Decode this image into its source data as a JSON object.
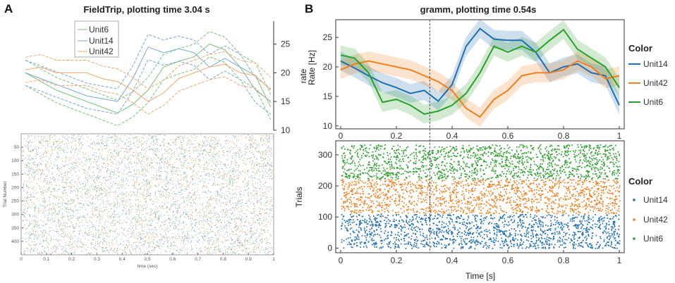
{
  "panels": {
    "A": {
      "letter": "A",
      "title": "FieldTrip, plotting time 3.04 s",
      "rate_axis": {
        "label": "rate",
        "ylim": [
          10,
          29
        ],
        "ticks": [
          "10",
          "15",
          "20",
          "25"
        ],
        "tick_values": [
          10,
          15,
          20,
          25
        ]
      },
      "raster_axis": {
        "ylabel": "Trial Number",
        "xlabel": "time (sec)",
        "xticks": [
          "0",
          "0.1",
          "0.2",
          "0.3",
          "0.4",
          "0.5",
          "0.6",
          "0.7",
          "0.8",
          "0.9",
          "1"
        ],
        "xtick_values": [
          0,
          0.1,
          0.2,
          0.3,
          0.4,
          0.5,
          0.6,
          0.7,
          0.8,
          0.9,
          1.0
        ],
        "yticks": [
          "50",
          "100",
          "150",
          "200",
          "250",
          "300",
          "350",
          "400"
        ],
        "ytick_values": [
          50,
          100,
          150,
          200,
          250,
          300,
          350,
          400
        ],
        "ylim": [
          0,
          450
        ]
      },
      "legend": [
        "Unit6",
        "Unit14",
        "Unit42"
      ]
    },
    "B": {
      "letter": "B",
      "title": "gramm, plotting time 0.54s",
      "rate_axis": {
        "label": "Rate [Hz]",
        "ylim": [
          9.5,
          28
        ],
        "ticks": [
          "10",
          "15",
          "20",
          "25"
        ],
        "tick_values": [
          10,
          15,
          20,
          25
        ],
        "xticks": [
          "0",
          "0.2",
          "0.4",
          "0.6",
          "0.8",
          "1"
        ],
        "xtick_values": [
          0,
          0.2,
          0.4,
          0.6,
          0.8,
          1.0
        ]
      },
      "raster_axis": {
        "ylabel": "Trials",
        "xlabel": "Time [s]",
        "xticks": [
          "0",
          "0.2",
          "0.4",
          "0.6",
          "0.8",
          "1"
        ],
        "xtick_values": [
          0,
          0.2,
          0.4,
          0.6,
          0.8,
          1.0
        ],
        "yticks": [
          "0",
          "100",
          "200",
          "300"
        ],
        "ytick_values": [
          0,
          100,
          200,
          300
        ],
        "ylim": [
          -15,
          345
        ]
      },
      "legend_rate": {
        "title": "Color",
        "items": [
          "Unit14",
          "Unit42",
          "Unit6"
        ]
      },
      "legend_raster": {
        "title": "Color",
        "items": [
          "Unit14",
          "Unit42",
          "Unit6"
        ]
      },
      "vline_x": 0.32
    }
  },
  "colors": {
    "Unit14": "#1f6fb2",
    "Unit42": "#f07f1e",
    "Unit6": "#2ca02c",
    "Unit14_a": "#79a9d6",
    "Unit42_a": "#f0a870",
    "Unit6_a": "#7cc27c"
  },
  "chart_data": [
    {
      "id": "A-rate",
      "type": "line",
      "title": "FieldTrip, plotting time 3.04 s",
      "ylabel": "rate",
      "ylim": [
        10,
        29
      ],
      "x": [
        0,
        0.0625,
        0.125,
        0.1875,
        0.25,
        0.3125,
        0.375,
        0.4375,
        0.5,
        0.5625,
        0.625,
        0.6875,
        0.75,
        0.8125,
        0.875,
        0.9375,
        1.0
      ],
      "series": [
        {
          "name": "Unit6",
          "color_key": "Unit6",
          "values": [
            20,
            18.5,
            17,
            16,
            15,
            14,
            13,
            14.5,
            17,
            21,
            22,
            22.8,
            25,
            24,
            21,
            19.5,
            14
          ]
        },
        {
          "name": "Unit14",
          "color_key": "Unit14",
          "values": [
            20,
            19,
            18,
            17,
            16,
            15.5,
            15,
            19,
            24.5,
            23.5,
            24.2,
            23.5,
            21,
            22.5,
            21,
            17,
            15
          ]
        },
        {
          "name": "Unit42",
          "color_key": "Unit42",
          "values": [
            20.5,
            21,
            20,
            20,
            20,
            19,
            18.5,
            17,
            15,
            16.5,
            19,
            20,
            21,
            21.5,
            20,
            19.5,
            17
          ]
        }
      ],
      "band": 2.2
    },
    {
      "id": "B-rate",
      "type": "line",
      "title": "gramm, plotting time 0.54s",
      "ylabel": "Rate [Hz]",
      "ylim": [
        9.5,
        28
      ],
      "x": [
        0,
        0.05,
        0.1,
        0.15,
        0.2,
        0.25,
        0.3,
        0.35,
        0.4,
        0.45,
        0.5,
        0.55,
        0.6,
        0.65,
        0.7,
        0.75,
        0.8,
        0.85,
        0.9,
        0.95,
        1.0
      ],
      "series": [
        {
          "name": "Unit14",
          "color_key": "Unit14",
          "values": [
            21,
            19.8,
            18.5,
            17.3,
            16.5,
            15.5,
            16,
            14.2,
            17,
            23.5,
            26.5,
            24.7,
            24.5,
            24.5,
            22.5,
            19,
            20,
            20.5,
            19,
            18.5,
            13.5
          ]
        },
        {
          "name": "Unit42",
          "color_key": "Unit42",
          "values": [
            19.5,
            20.5,
            21,
            20.5,
            20,
            19.5,
            18.5,
            17.5,
            16,
            13,
            11.5,
            14.5,
            16,
            18.5,
            19,
            19,
            19.5,
            21,
            20,
            18,
            18.5
          ]
        },
        {
          "name": "Unit6",
          "color_key": "Unit6",
          "values": [
            22,
            21.5,
            19,
            14,
            14.5,
            13.5,
            12,
            12.5,
            13.5,
            15.5,
            19,
            23.5,
            22.5,
            23.5,
            22.5,
            24.5,
            26.3,
            23,
            21.5,
            20,
            16.5
          ]
        }
      ],
      "band": 1.6
    },
    {
      "id": "A-raster",
      "type": "scatter",
      "xlabel": "time (sec)",
      "ylabel": "Trial Number",
      "xlim": [
        0,
        1
      ],
      "ylim": [
        0,
        450
      ],
      "groups": [
        {
          "name": "Unit6",
          "color_key": "Unit6_a",
          "trials": 450,
          "spikes": 1700
        },
        {
          "name": "Unit14",
          "color_key": "Unit14_a",
          "trials": 450,
          "spikes": 1700
        },
        {
          "name": "Unit42",
          "color_key": "Unit42_a",
          "trials": 450,
          "spikes": 1700
        }
      ]
    },
    {
      "id": "B-raster",
      "type": "scatter",
      "xlabel": "Time [s]",
      "ylabel": "Trials",
      "xlim": [
        0,
        1
      ],
      "ylim": [
        -15,
        345
      ],
      "groups": [
        {
          "name": "Unit14",
          "color_key": "Unit14",
          "trial_range": [
            0,
            110
          ],
          "spikes": 1500
        },
        {
          "name": "Unit42",
          "color_key": "Unit42",
          "trial_range": [
            112,
            222
          ],
          "spikes": 1500
        },
        {
          "name": "Unit6",
          "color_key": "Unit6",
          "trial_range": [
            224,
            334
          ],
          "spikes": 1500
        }
      ]
    }
  ]
}
